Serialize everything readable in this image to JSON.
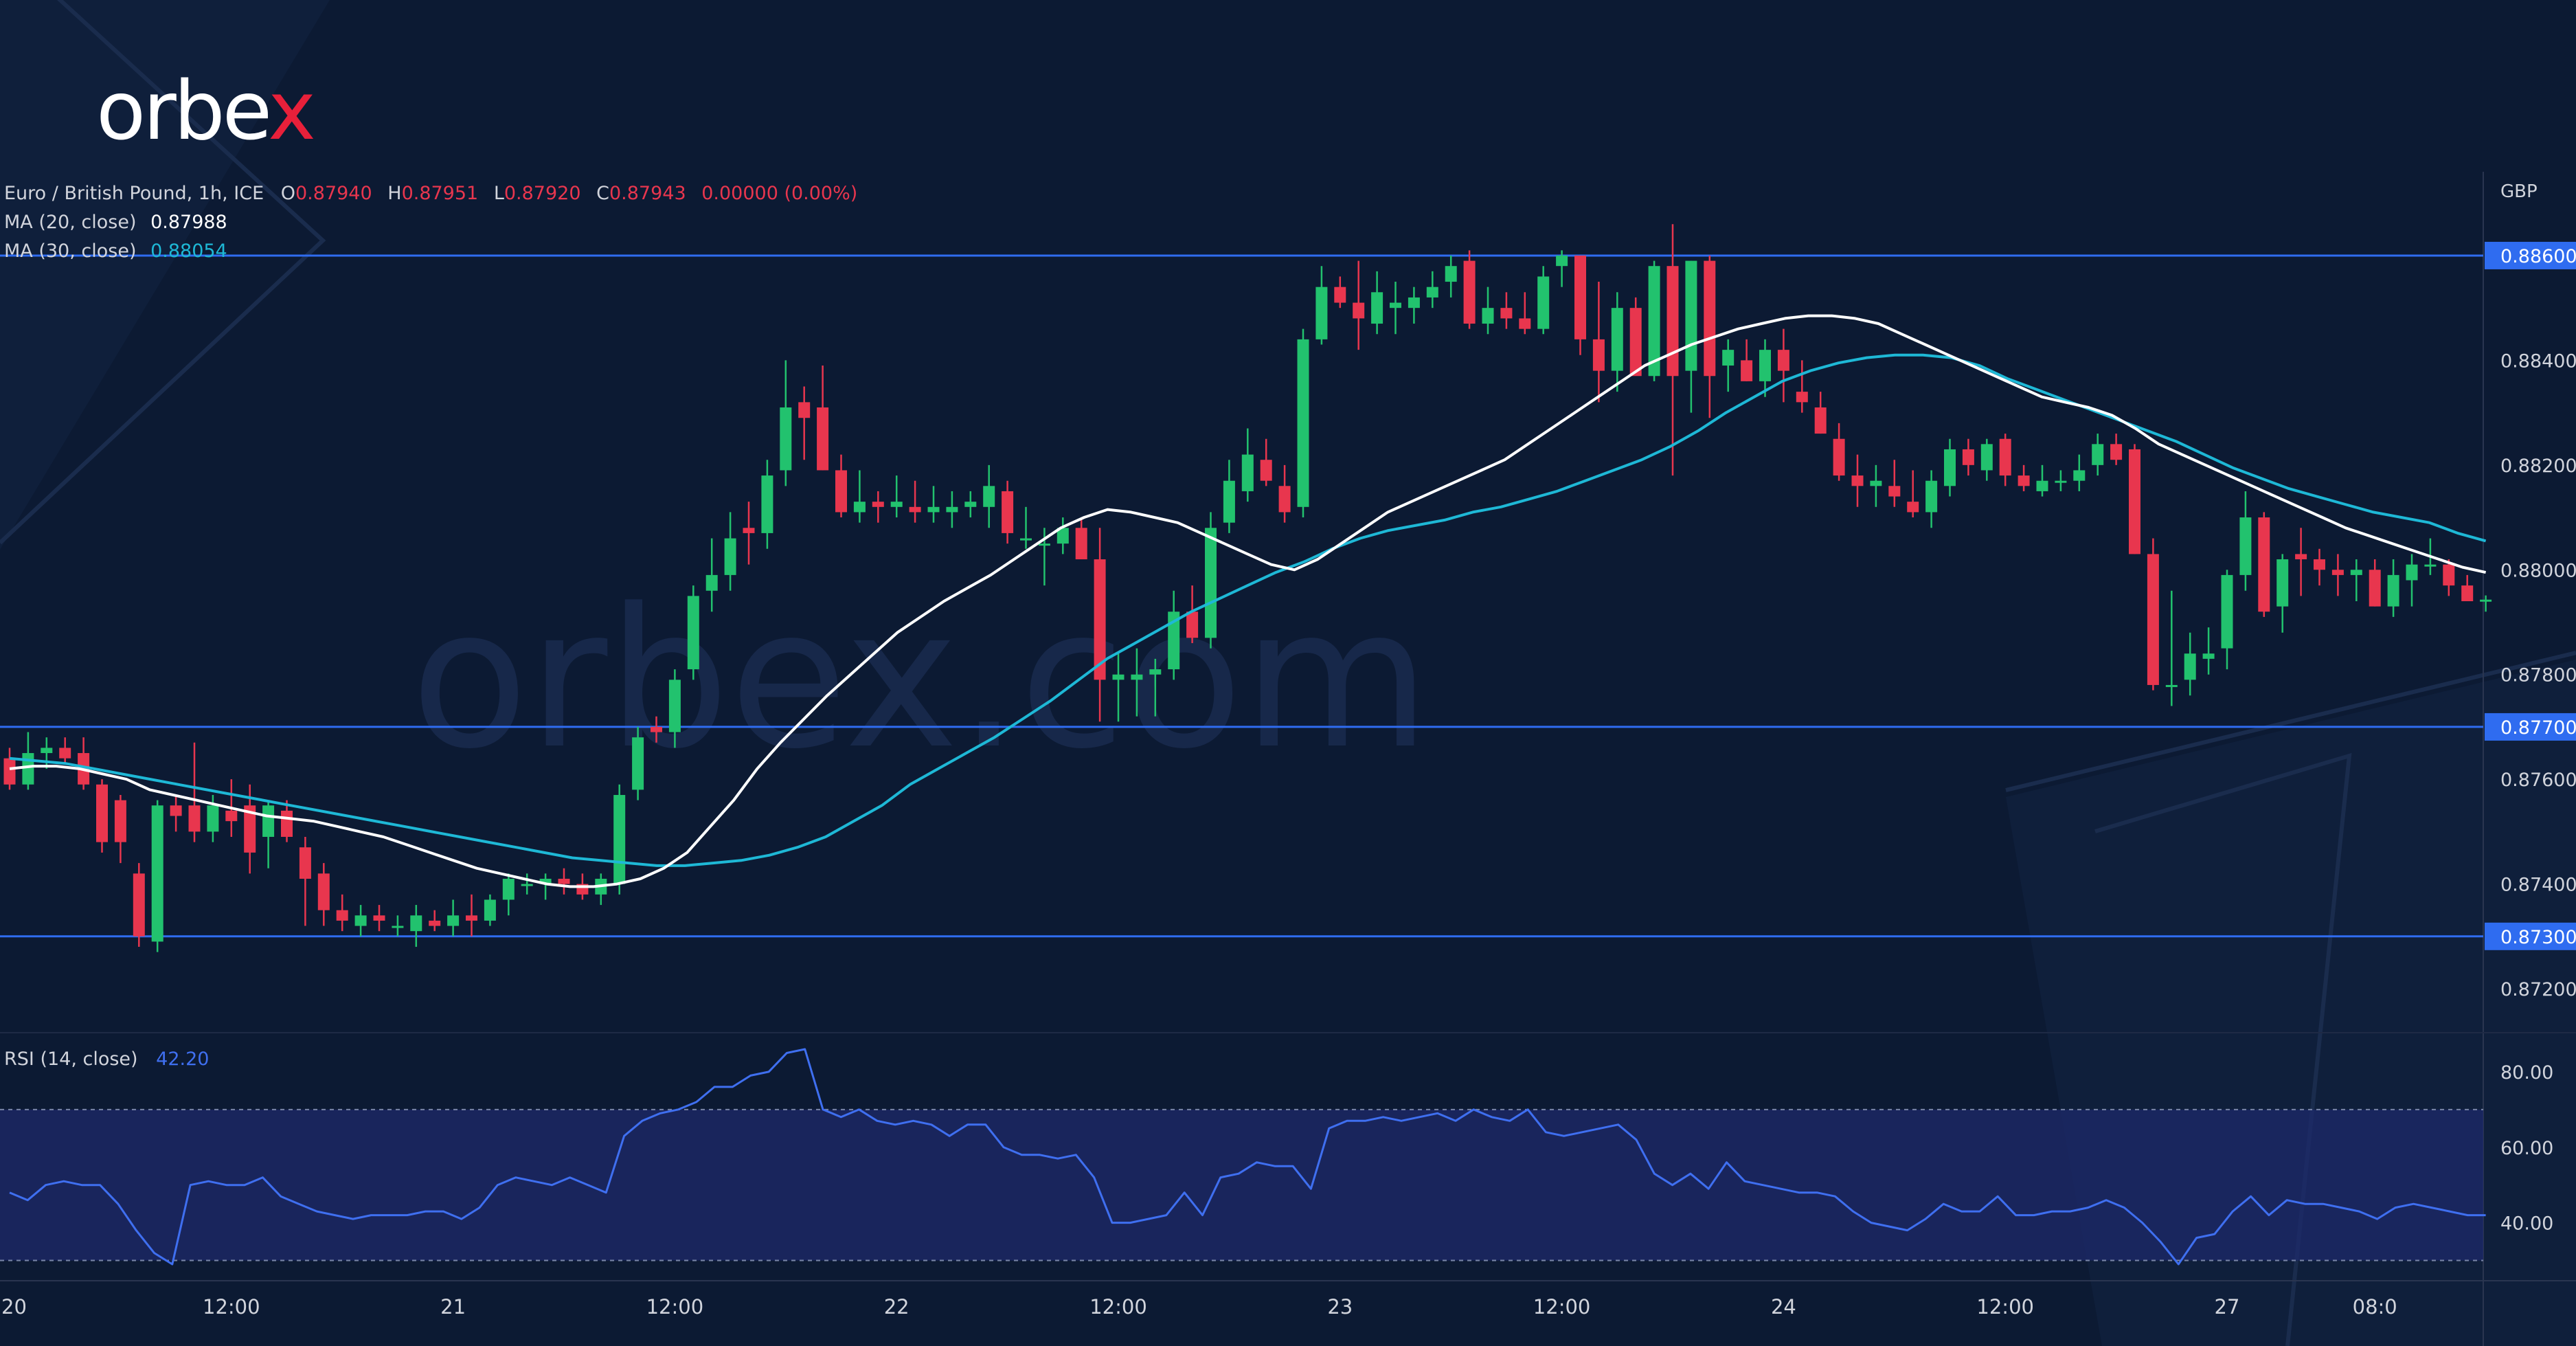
{
  "brand": {
    "logo_text_main": "orbe",
    "logo_text_x": "x",
    "watermark": "orbex.com"
  },
  "legend": {
    "symbol": "Euro / British Pound, 1h, ICE",
    "ohlc": [
      {
        "k": "O",
        "v": "0.87940"
      },
      {
        "k": "H",
        "v": "0.87951"
      },
      {
        "k": "L",
        "v": "0.87920"
      },
      {
        "k": "C",
        "v": "0.87943"
      }
    ],
    "change": "0.00000 (0.00%)",
    "ma20_label": "MA (20, close)",
    "ma20_value": "0.87988",
    "ma30_label": "MA (30, close)",
    "ma30_value": "0.88054",
    "rsi_label": "RSI (14, close)",
    "rsi_value": "42.20"
  },
  "colors": {
    "background": "#0c1a33",
    "up": "#22c26e",
    "down": "#e8364e",
    "ma20": "#ffffff",
    "ma30": "#1eb8d6",
    "level_line": "#2f6cf0",
    "rsi_line": "#3f6ff0",
    "rsi_band": "#1e2a6b",
    "axis_text": "#d1d4dc"
  },
  "chart_data": {
    "type": "candlestick",
    "symbol": "EUR/GBP",
    "timeframe": "1h",
    "currency": "GBP",
    "y_range": [
      0.8712,
      0.8876
    ],
    "y_ticks": [
      "0.88400",
      "0.88200",
      "0.88000",
      "0.87800",
      "0.87600",
      "0.87400",
      "0.87200"
    ],
    "levels": [
      {
        "value": 0.886,
        "label": "0.88600"
      },
      {
        "value": 0.877,
        "label": "0.87700"
      },
      {
        "value": 0.873,
        "label": "0.87300"
      }
    ],
    "x_labels": [
      "20",
      "12:00",
      "21",
      "12:00",
      "22",
      "12:00",
      "23",
      "12:00",
      "24",
      "12:00",
      "27",
      "08:0"
    ],
    "x_label_index": [
      0,
      12,
      24,
      36,
      48,
      60,
      72,
      84,
      96,
      108,
      120,
      128
    ],
    "candles": [
      [
        0.8764,
        0.8766,
        0.8758,
        0.8759
      ],
      [
        0.8759,
        0.8769,
        0.8758,
        0.8765
      ],
      [
        0.8765,
        0.8768,
        0.8762,
        0.8766
      ],
      [
        0.8766,
        0.8768,
        0.8763,
        0.8764
      ],
      [
        0.8765,
        0.8768,
        0.8758,
        0.8759
      ],
      [
        0.8759,
        0.876,
        0.8746,
        0.8748
      ],
      [
        0.8756,
        0.8757,
        0.8744,
        0.8748
      ],
      [
        0.8742,
        0.8744,
        0.8728,
        0.873
      ],
      [
        0.8729,
        0.8756,
        0.8727,
        0.8755
      ],
      [
        0.8755,
        0.8757,
        0.875,
        0.8753
      ],
      [
        0.8755,
        0.8767,
        0.8748,
        0.875
      ],
      [
        0.875,
        0.8757,
        0.8748,
        0.8755
      ],
      [
        0.8754,
        0.876,
        0.8749,
        0.8752
      ],
      [
        0.8755,
        0.8759,
        0.8742,
        0.8746
      ],
      [
        0.8749,
        0.8756,
        0.8743,
        0.8755
      ],
      [
        0.8754,
        0.8756,
        0.8748,
        0.8749
      ],
      [
        0.8747,
        0.8749,
        0.8732,
        0.8741
      ],
      [
        0.8742,
        0.8744,
        0.8732,
        0.8735
      ],
      [
        0.8735,
        0.8738,
        0.8731,
        0.8733
      ],
      [
        0.8732,
        0.8736,
        0.873,
        0.8734
      ],
      [
        0.8734,
        0.8736,
        0.8731,
        0.8733
      ],
      [
        0.8732,
        0.8734,
        0.873,
        0.8732
      ],
      [
        0.8731,
        0.8736,
        0.8728,
        0.8734
      ],
      [
        0.8733,
        0.8735,
        0.8731,
        0.8732
      ],
      [
        0.8732,
        0.8737,
        0.873,
        0.8734
      ],
      [
        0.8734,
        0.8738,
        0.873,
        0.8733
      ],
      [
        0.8733,
        0.8738,
        0.8732,
        0.8737
      ],
      [
        0.8737,
        0.8742,
        0.8734,
        0.8741
      ],
      [
        0.874,
        0.8742,
        0.8738,
        0.874
      ],
      [
        0.874,
        0.8742,
        0.8737,
        0.8741
      ],
      [
        0.8741,
        0.8743,
        0.8738,
        0.874
      ],
      [
        0.874,
        0.8742,
        0.8737,
        0.8738
      ],
      [
        0.8738,
        0.8742,
        0.8736,
        0.8741
      ],
      [
        0.874,
        0.8759,
        0.8738,
        0.8757
      ],
      [
        0.8758,
        0.877,
        0.8756,
        0.8768
      ],
      [
        0.877,
        0.8772,
        0.8767,
        0.8769
      ],
      [
        0.8769,
        0.8781,
        0.8766,
        0.8779
      ],
      [
        0.8781,
        0.8797,
        0.8779,
        0.8795
      ],
      [
        0.8796,
        0.8806,
        0.8792,
        0.8799
      ],
      [
        0.8799,
        0.8811,
        0.8796,
        0.8806
      ],
      [
        0.8808,
        0.8813,
        0.8801,
        0.8807
      ],
      [
        0.8807,
        0.8821,
        0.8804,
        0.8818
      ],
      [
        0.8819,
        0.884,
        0.8816,
        0.8831
      ],
      [
        0.8832,
        0.8835,
        0.8821,
        0.8829
      ],
      [
        0.8831,
        0.8839,
        0.8819,
        0.8819
      ],
      [
        0.8819,
        0.8822,
        0.881,
        0.8811
      ],
      [
        0.8811,
        0.8819,
        0.8809,
        0.8813
      ],
      [
        0.8813,
        0.8815,
        0.8809,
        0.8812
      ],
      [
        0.8812,
        0.8818,
        0.881,
        0.8813
      ],
      [
        0.8812,
        0.8817,
        0.8809,
        0.8811
      ],
      [
        0.8811,
        0.8816,
        0.8809,
        0.8812
      ],
      [
        0.8811,
        0.8815,
        0.8808,
        0.8812
      ],
      [
        0.8812,
        0.8815,
        0.881,
        0.8813
      ],
      [
        0.8812,
        0.882,
        0.8808,
        0.8816
      ],
      [
        0.8815,
        0.8817,
        0.8805,
        0.8807
      ],
      [
        0.8806,
        0.8812,
        0.8804,
        0.8806
      ],
      [
        0.8805,
        0.8808,
        0.8797,
        0.8805
      ],
      [
        0.8805,
        0.881,
        0.8803,
        0.8808
      ],
      [
        0.8808,
        0.881,
        0.8802,
        0.8802
      ],
      [
        0.8802,
        0.8808,
        0.8771,
        0.8779
      ],
      [
        0.8779,
        0.8784,
        0.8771,
        0.878
      ],
      [
        0.8779,
        0.8785,
        0.8772,
        0.878
      ],
      [
        0.878,
        0.8783,
        0.8772,
        0.8781
      ],
      [
        0.8781,
        0.8796,
        0.8779,
        0.8792
      ],
      [
        0.8792,
        0.8797,
        0.8786,
        0.8787
      ],
      [
        0.8787,
        0.8811,
        0.8785,
        0.8808
      ],
      [
        0.8809,
        0.8821,
        0.8807,
        0.8817
      ],
      [
        0.8815,
        0.8827,
        0.8813,
        0.8822
      ],
      [
        0.8821,
        0.8825,
        0.8816,
        0.8817
      ],
      [
        0.8816,
        0.882,
        0.8809,
        0.8811
      ],
      [
        0.8812,
        0.8846,
        0.881,
        0.8844
      ],
      [
        0.8844,
        0.8858,
        0.8843,
        0.8854
      ],
      [
        0.8854,
        0.8856,
        0.885,
        0.8851
      ],
      [
        0.8851,
        0.8859,
        0.8842,
        0.8848
      ],
      [
        0.8847,
        0.8857,
        0.8845,
        0.8853
      ],
      [
        0.885,
        0.8855,
        0.8845,
        0.8851
      ],
      [
        0.885,
        0.8854,
        0.8847,
        0.8852
      ],
      [
        0.8852,
        0.8857,
        0.885,
        0.8854
      ],
      [
        0.8855,
        0.886,
        0.8852,
        0.8858
      ],
      [
        0.8859,
        0.8861,
        0.8846,
        0.8847
      ],
      [
        0.8847,
        0.8854,
        0.8845,
        0.885
      ],
      [
        0.885,
        0.8853,
        0.8846,
        0.8848
      ],
      [
        0.8848,
        0.8853,
        0.8845,
        0.8846
      ],
      [
        0.8846,
        0.8858,
        0.8845,
        0.8856
      ],
      [
        0.8858,
        0.8861,
        0.8854,
        0.886
      ],
      [
        0.886,
        0.886,
        0.8841,
        0.8844
      ],
      [
        0.8844,
        0.8855,
        0.8832,
        0.8838
      ],
      [
        0.8838,
        0.8853,
        0.8834,
        0.885
      ],
      [
        0.885,
        0.8852,
        0.8838,
        0.8837
      ],
      [
        0.8837,
        0.8859,
        0.8836,
        0.8858
      ],
      [
        0.8858,
        0.8866,
        0.8818,
        0.8837
      ],
      [
        0.8838,
        0.8859,
        0.883,
        0.8859
      ],
      [
        0.8859,
        0.886,
        0.8829,
        0.8837
      ],
      [
        0.8839,
        0.8844,
        0.8834,
        0.8842
      ],
      [
        0.884,
        0.8844,
        0.8836,
        0.8836
      ],
      [
        0.8836,
        0.8844,
        0.8833,
        0.8842
      ],
      [
        0.8842,
        0.8846,
        0.8832,
        0.8838
      ],
      [
        0.8834,
        0.884,
        0.883,
        0.8832
      ],
      [
        0.8831,
        0.8834,
        0.8826,
        0.8826
      ],
      [
        0.8825,
        0.8828,
        0.8817,
        0.8818
      ],
      [
        0.8818,
        0.8822,
        0.8812,
        0.8816
      ],
      [
        0.8816,
        0.882,
        0.8812,
        0.8817
      ],
      [
        0.8816,
        0.8821,
        0.8812,
        0.8814
      ],
      [
        0.8813,
        0.8819,
        0.881,
        0.8811
      ],
      [
        0.8811,
        0.8819,
        0.8808,
        0.8817
      ],
      [
        0.8816,
        0.8825,
        0.8814,
        0.8823
      ],
      [
        0.8823,
        0.8825,
        0.8818,
        0.882
      ],
      [
        0.8819,
        0.8825,
        0.8817,
        0.8824
      ],
      [
        0.8825,
        0.8826,
        0.8816,
        0.8818
      ],
      [
        0.8818,
        0.882,
        0.8815,
        0.8816
      ],
      [
        0.8815,
        0.882,
        0.8814,
        0.8817
      ],
      [
        0.8817,
        0.8819,
        0.8815,
        0.8817
      ],
      [
        0.8817,
        0.8822,
        0.8815,
        0.8819
      ],
      [
        0.882,
        0.8826,
        0.8818,
        0.8824
      ],
      [
        0.8824,
        0.8826,
        0.882,
        0.8821
      ],
      [
        0.8823,
        0.8824,
        0.8803,
        0.8803
      ],
      [
        0.8803,
        0.8806,
        0.8777,
        0.8778
      ],
      [
        0.8778,
        0.8796,
        0.8774,
        0.8778
      ],
      [
        0.8779,
        0.8788,
        0.8776,
        0.8784
      ],
      [
        0.8783,
        0.8789,
        0.878,
        0.8784
      ],
      [
        0.8785,
        0.88,
        0.8781,
        0.8799
      ],
      [
        0.8799,
        0.8815,
        0.8796,
        0.881
      ],
      [
        0.881,
        0.8811,
        0.8791,
        0.8792
      ],
      [
        0.8793,
        0.8803,
        0.8788,
        0.8802
      ],
      [
        0.8803,
        0.8808,
        0.8795,
        0.8802
      ],
      [
        0.8802,
        0.8804,
        0.8797,
        0.88
      ],
      [
        0.88,
        0.8803,
        0.8795,
        0.8799
      ],
      [
        0.8799,
        0.8802,
        0.8794,
        0.88
      ],
      [
        0.88,
        0.8802,
        0.8793,
        0.8793
      ],
      [
        0.8793,
        0.8802,
        0.8791,
        0.8799
      ],
      [
        0.8798,
        0.8803,
        0.8793,
        0.8801
      ],
      [
        0.8801,
        0.8806,
        0.8799,
        0.8801
      ],
      [
        0.8801,
        0.8802,
        0.8795,
        0.8797
      ],
      [
        0.8797,
        0.8799,
        0.8794,
        0.8794
      ],
      [
        0.8794,
        0.87951,
        0.8792,
        0.87943
      ]
    ],
    "ma20": [
      0.8762,
      0.87625,
      0.87625,
      0.8762,
      0.8761,
      0.876,
      0.8758,
      0.8757,
      0.8756,
      0.8755,
      0.8754,
      0.8753,
      0.87525,
      0.8752,
      0.8751,
      0.875,
      0.8749,
      0.87475,
      0.8746,
      0.87445,
      0.8743,
      0.8742,
      0.8741,
      0.874,
      0.87395,
      0.87395,
      0.874,
      0.8741,
      0.8743,
      0.8746,
      0.8751,
      0.8756,
      0.8762,
      0.8767,
      0.87715,
      0.8776,
      0.878,
      0.8784,
      0.8788,
      0.8791,
      0.8794,
      0.87965,
      0.8799,
      0.8802,
      0.8805,
      0.8808,
      0.881,
      0.88115,
      0.8811,
      0.881,
      0.8809,
      0.8807,
      0.8805,
      0.8803,
      0.8801,
      0.88,
      0.8802,
      0.8805,
      0.8808,
      0.8811,
      0.8813,
      0.8815,
      0.8817,
      0.8819,
      0.8821,
      0.8824,
      0.8827,
      0.883,
      0.8833,
      0.8836,
      0.8839,
      0.8841,
      0.8843,
      0.88445,
      0.8846,
      0.8847,
      0.8848,
      0.88485,
      0.88485,
      0.8848,
      0.8847,
      0.8845,
      0.8843,
      0.8841,
      0.8839,
      0.8837,
      0.8835,
      0.8833,
      0.8832,
      0.8831,
      0.88295,
      0.8827,
      0.8824,
      0.8822,
      0.882,
      0.8818,
      0.8816,
      0.8814,
      0.8812,
      0.881,
      0.8808,
      0.88065,
      0.8805,
      0.88035,
      0.8802,
      0.88005,
      0.87995
    ],
    "ma30": [
      0.8764,
      0.87635,
      0.8763,
      0.8762,
      0.8761,
      0.876,
      0.8759,
      0.8758,
      0.8757,
      0.8756,
      0.8755,
      0.8754,
      0.8753,
      0.8752,
      0.8751,
      0.875,
      0.8749,
      0.8748,
      0.8747,
      0.8746,
      0.8745,
      0.87445,
      0.8744,
      0.87435,
      0.87435,
      0.8744,
      0.87445,
      0.87455,
      0.8747,
      0.8749,
      0.8752,
      0.8755,
      0.8759,
      0.8762,
      0.8765,
      0.8768,
      0.87715,
      0.8775,
      0.8779,
      0.8783,
      0.8786,
      0.8789,
      0.8792,
      0.87945,
      0.8797,
      0.87995,
      0.88015,
      0.8804,
      0.8806,
      0.88075,
      0.88085,
      0.88095,
      0.8811,
      0.8812,
      0.88135,
      0.8815,
      0.8817,
      0.8819,
      0.8821,
      0.88235,
      0.88265,
      0.883,
      0.8833,
      0.8836,
      0.8838,
      0.88395,
      0.88405,
      0.8841,
      0.8841,
      0.88405,
      0.8839,
      0.88365,
      0.88345,
      0.88325,
      0.88305,
      0.88285,
      0.88265,
      0.88245,
      0.8822,
      0.88195,
      0.88175,
      0.88155,
      0.8814,
      0.88125,
      0.8811,
      0.881,
      0.8809,
      0.8807,
      0.88055
    ],
    "ma20_start": 0,
    "ma30_start": 0,
    "rsi": {
      "y_range": [
        25,
        90
      ],
      "y_ticks": [
        "80.00",
        "60.00",
        "40.00"
      ],
      "band": [
        30,
        70
      ],
      "values": [
        48,
        46,
        50,
        51,
        50,
        50,
        45,
        38,
        32,
        29,
        50,
        51,
        50,
        50,
        52,
        47,
        45,
        43,
        42,
        41,
        42,
        42,
        42,
        43,
        43,
        41,
        44,
        50,
        52,
        51,
        50,
        52,
        50,
        48,
        63,
        67,
        69,
        70,
        72,
        76,
        76,
        79,
        80,
        85,
        86,
        70,
        68,
        70,
        67,
        66,
        67,
        66,
        63,
        66,
        66,
        60,
        58,
        58,
        57,
        58,
        52,
        40,
        40,
        41,
        42,
        48,
        42,
        52,
        53,
        56,
        55,
        55,
        49,
        65,
        67,
        67,
        68,
        67,
        68,
        69,
        67,
        70,
        68,
        67,
        70,
        64,
        63,
        64,
        65,
        66,
        62,
        53,
        50,
        53,
        49,
        56,
        51,
        50,
        49,
        48,
        48,
        47,
        43,
        40,
        39,
        38,
        41,
        45,
        43,
        43,
        47,
        42,
        42,
        43,
        43,
        44,
        46,
        44,
        40,
        35,
        29,
        36,
        37,
        43,
        47,
        42,
        46,
        45,
        45,
        44,
        43,
        41,
        44,
        45,
        44,
        43,
        42,
        42
      ]
    }
  }
}
